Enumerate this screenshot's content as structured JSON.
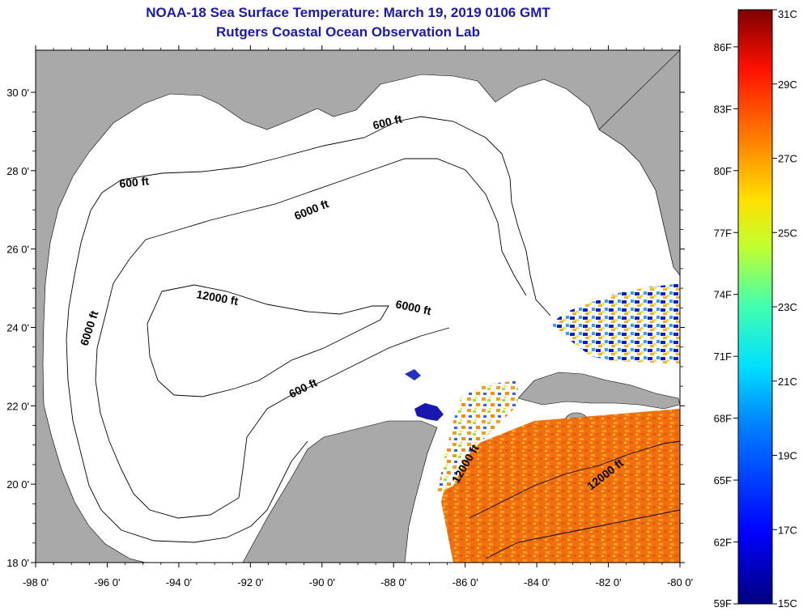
{
  "header": {
    "title": "NOAA-18 Sea Surface Temperature:  March 19, 2019 0106 GMT",
    "subtitle": "Rutgers Coastal Ocean Observation Lab"
  },
  "map": {
    "lon_ticks": [
      "-98 0'",
      "-96 0'",
      "-94 0'",
      "-92 0'",
      "-90 0'",
      "-88 0'",
      "-86 0'",
      "-84 0'",
      "-82 0'",
      "-80 0'"
    ],
    "lat_ticks": [
      "30 0'",
      "28 0'",
      "26 0'",
      "24 0'",
      "22 0'",
      "20 0'",
      "18 0'"
    ],
    "contour_labels": [
      "600 ft",
      "600 ft",
      "6000 ft",
      "6000 ft",
      "12000 ft",
      "6000 ft",
      "600 ft",
      "12000 ft",
      "12000 ft"
    ],
    "colors": {
      "land": "#a9a9a9",
      "ocean_nodata": "#ffffff",
      "contour": "#000000",
      "title": "#1a1aa6"
    }
  },
  "colorbar": {
    "fahrenheit": [
      "86F",
      "83F",
      "80F",
      "77F",
      "74F",
      "71F",
      "68F",
      "65F",
      "62F",
      "59F"
    ],
    "celsius": [
      "31C",
      "29C",
      "27C",
      "25C",
      "23C",
      "21C",
      "19C",
      "17C",
      "15C"
    ],
    "range_celsius": [
      15,
      31
    ]
  }
}
